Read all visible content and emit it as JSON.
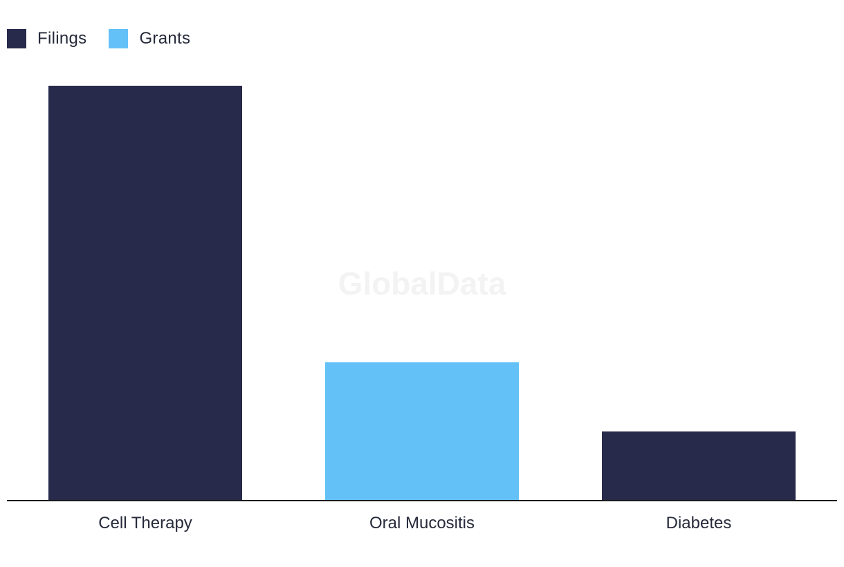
{
  "watermark": "GlobalData",
  "colors": {
    "filings": "#282a4b",
    "grants": "#63c1f8",
    "axis": "#1a1a1a"
  },
  "chart_data": {
    "type": "bar",
    "categories": [
      "Cell Therapy",
      "Oral Mucositis",
      "Diabetes"
    ],
    "values": [
      6,
      2,
      1
    ],
    "series_by_bar": [
      "Filings",
      "Grants",
      "Filings"
    ],
    "legend": [
      {
        "name": "Filings",
        "color": "#282a4b"
      },
      {
        "name": "Grants",
        "color": "#63c1f8"
      }
    ],
    "legend_position": "top-left",
    "ylim": [
      0,
      6
    ],
    "grid": false,
    "title": "",
    "xlabel": "",
    "ylabel": ""
  }
}
